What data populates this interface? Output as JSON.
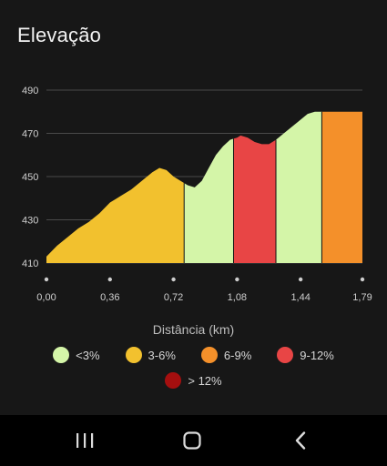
{
  "screen": {
    "title": "Elevação"
  },
  "chart_data": {
    "type": "area",
    "xlabel": "Distância (km)",
    "ylabel": "",
    "x_ticks": [
      "0,00",
      "0,36",
      "0,72",
      "1,08",
      "1,44",
      "1,79"
    ],
    "x_tick_values": [
      0,
      0.36,
      0.72,
      1.08,
      1.44,
      1.79
    ],
    "y_ticks": [
      "410",
      "430",
      "450",
      "470",
      "490"
    ],
    "y_tick_values": [
      410,
      430,
      450,
      470,
      490
    ],
    "xlim": [
      0,
      1.79
    ],
    "ylim": [
      410,
      490
    ],
    "grid": "horizontal",
    "profile": [
      [
        0.0,
        413
      ],
      [
        0.06,
        418
      ],
      [
        0.12,
        422
      ],
      [
        0.18,
        426
      ],
      [
        0.24,
        429
      ],
      [
        0.3,
        433
      ],
      [
        0.36,
        438
      ],
      [
        0.42,
        441
      ],
      [
        0.48,
        444
      ],
      [
        0.54,
        448
      ],
      [
        0.6,
        452
      ],
      [
        0.64,
        454
      ],
      [
        0.68,
        453
      ],
      [
        0.72,
        450
      ],
      [
        0.76,
        448
      ],
      [
        0.8,
        446
      ],
      [
        0.84,
        445
      ],
      [
        0.88,
        448
      ],
      [
        0.92,
        454
      ],
      [
        0.96,
        460
      ],
      [
        1.0,
        464
      ],
      [
        1.04,
        467
      ],
      [
        1.08,
        468
      ],
      [
        1.1,
        469
      ],
      [
        1.14,
        468
      ],
      [
        1.18,
        466
      ],
      [
        1.22,
        465
      ],
      [
        1.26,
        465
      ],
      [
        1.3,
        467
      ],
      [
        1.36,
        471
      ],
      [
        1.42,
        475
      ],
      [
        1.48,
        479
      ],
      [
        1.52,
        480
      ]
    ],
    "segments": [
      {
        "from": 0.0,
        "to": 0.78,
        "category": "3-6%"
      },
      {
        "from": 0.78,
        "to": 1.06,
        "category": "<3%"
      },
      {
        "from": 1.06,
        "to": 1.3,
        "category": "9-12%"
      },
      {
        "from": 1.3,
        "to": 1.56,
        "category": "<3%"
      },
      {
        "from": 1.56,
        "to": 1.79,
        "category": "6-9%"
      }
    ],
    "legend": [
      {
        "label": "<3%",
        "color": "#d4f5a8"
      },
      {
        "label": "3-6%",
        "color": "#f2c12e"
      },
      {
        "label": "6-9%",
        "color": "#f4902a"
      },
      {
        "label": "9-12%",
        "color": "#e84545"
      },
      {
        "label": "> 12%",
        "color": "#a50f0f"
      }
    ]
  },
  "colors": {
    "background": "#171717",
    "navbar": "#000000"
  },
  "navbar": {
    "icons": [
      "recent-apps-icon",
      "home-icon",
      "back-icon"
    ]
  }
}
